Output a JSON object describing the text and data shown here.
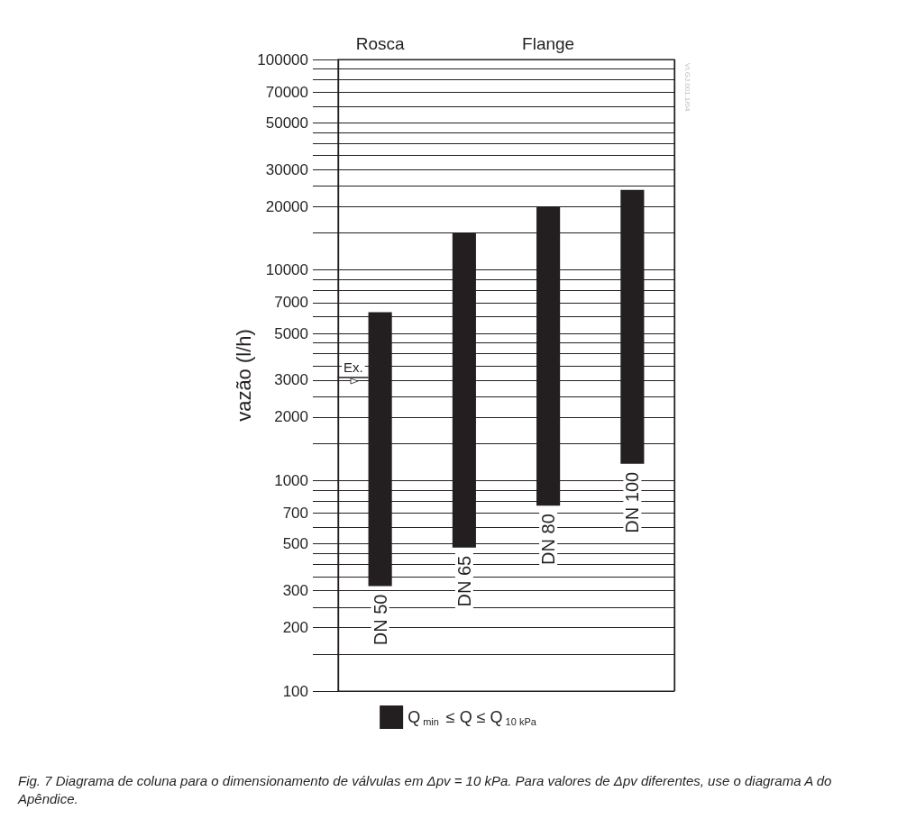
{
  "chart_data": {
    "type": "bar",
    "ylabel": "vazão (l/h)",
    "log": "y",
    "grid": "y",
    "legend": "bottom",
    "categories": [
      "DN 50",
      "DN 65",
      "DN 80",
      "DN 100"
    ],
    "series": [
      {
        "name": "Q$_{min}$ ≤ Q ≤ Q$_{10 kPa}$",
        "color": "#231f20",
        "base": [
          315,
          480,
          760,
          1200
        ],
        "values": [
          5985,
          14520,
          19240,
          22800
        ]
      }
    ],
    "ylim": [
      100,
      100000
    ],
    "yticks": [
      100,
      {
        "value": 150,
        "label": null
      },
      200,
      {
        "value": 250,
        "label": null
      },
      300,
      {
        "value": 350,
        "label": null
      },
      {
        "value": 400,
        "label": null
      },
      {
        "value": 450,
        "label": null
      },
      500,
      {
        "value": 600,
        "label": null
      },
      700,
      {
        "value": 800,
        "label": null
      },
      {
        "value": 900,
        "label": null
      },
      1000,
      {
        "value": 1500,
        "label": null
      },
      2000,
      {
        "value": 2500,
        "label": null
      },
      3000,
      {
        "value": 3500,
        "label": null
      },
      {
        "value": 4000,
        "label": null
      },
      {
        "value": 4500,
        "label": null
      },
      5000,
      {
        "value": 6000,
        "label": null
      },
      7000,
      {
        "value": 8000,
        "label": null
      },
      {
        "value": 9000,
        "label": null
      },
      10000,
      {
        "value": 15000,
        "label": null
      },
      20000,
      {
        "value": 25000,
        "label": null
      },
      30000,
      {
        "value": 35000,
        "label": null
      },
      {
        "value": 40000,
        "label": null
      },
      {
        "value": 45000,
        "label": null
      },
      50000,
      {
        "value": 60000,
        "label": null
      },
      70000,
      {
        "value": 80000,
        "label": null
      },
      {
        "value": 90000,
        "label": null
      },
      100000
    ],
    "annotations": [
      "Rosca",
      "Flange",
      "Ex.",
      "VI.GJ.001.1/04",
      "Fig. 7 Diagrama de coluna para o dimensionamento de válvulas em Δpv = 10 kPa. Para valores de Δpv diferentes, use o diagrama A do Apêndice."
    ]
  }
}
